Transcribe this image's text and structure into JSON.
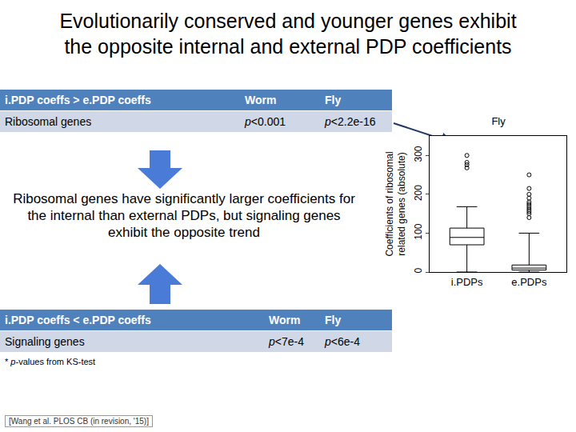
{
  "title": [
    "Evolutionarily conserved and younger genes exhibit",
    "the opposite internal and external PDP coefficients"
  ],
  "tables": [
    {
      "header": [
        "i.PDP coeffs > e.PDP coeffs",
        "Worm",
        "Fly"
      ],
      "rows": [
        [
          "Ribosomal genes",
          "p<0.001",
          "p<2.2e-16"
        ]
      ]
    },
    {
      "header": [
        "i.PDP coeffs < e.PDP coeffs",
        "Worm",
        "Fly"
      ],
      "rows": [
        [
          "Signaling genes",
          "p<7e-4",
          "p<6e-4"
        ]
      ]
    }
  ],
  "summary": "Ribosomal genes have significantly larger coefficients for the internal than external PDPs, but signaling genes exhibit the opposite trend",
  "footnote": "* p-values from KS-test",
  "citation": "[Wang et al. PLOS CB (in revision, '15)]",
  "chart_data": {
    "type": "box",
    "title": "Fly",
    "y_label": [
      "Coefficients of ribosomal",
      "related genes (absolute)"
    ],
    "categories": [
      "i.PDPs",
      "e.PDPs"
    ],
    "q1": [
      70,
      5
    ],
    "median": [
      89,
      10
    ],
    "q3": [
      113,
      18
    ],
    "lower_whisker": [
      0,
      0
    ],
    "upper_whisker": [
      168,
      100
    ],
    "outliers": [
      [
        268,
        276,
        282,
        300
      ],
      [
        140,
        150,
        155,
        160,
        165,
        170,
        175,
        180,
        190,
        200,
        215,
        250
      ]
    ],
    "ylim": [
      0,
      350
    ],
    "yticks": [
      0,
      100,
      200,
      300
    ],
    "color": "#000000",
    "marker": "circle-open",
    "grid": false
  }
}
